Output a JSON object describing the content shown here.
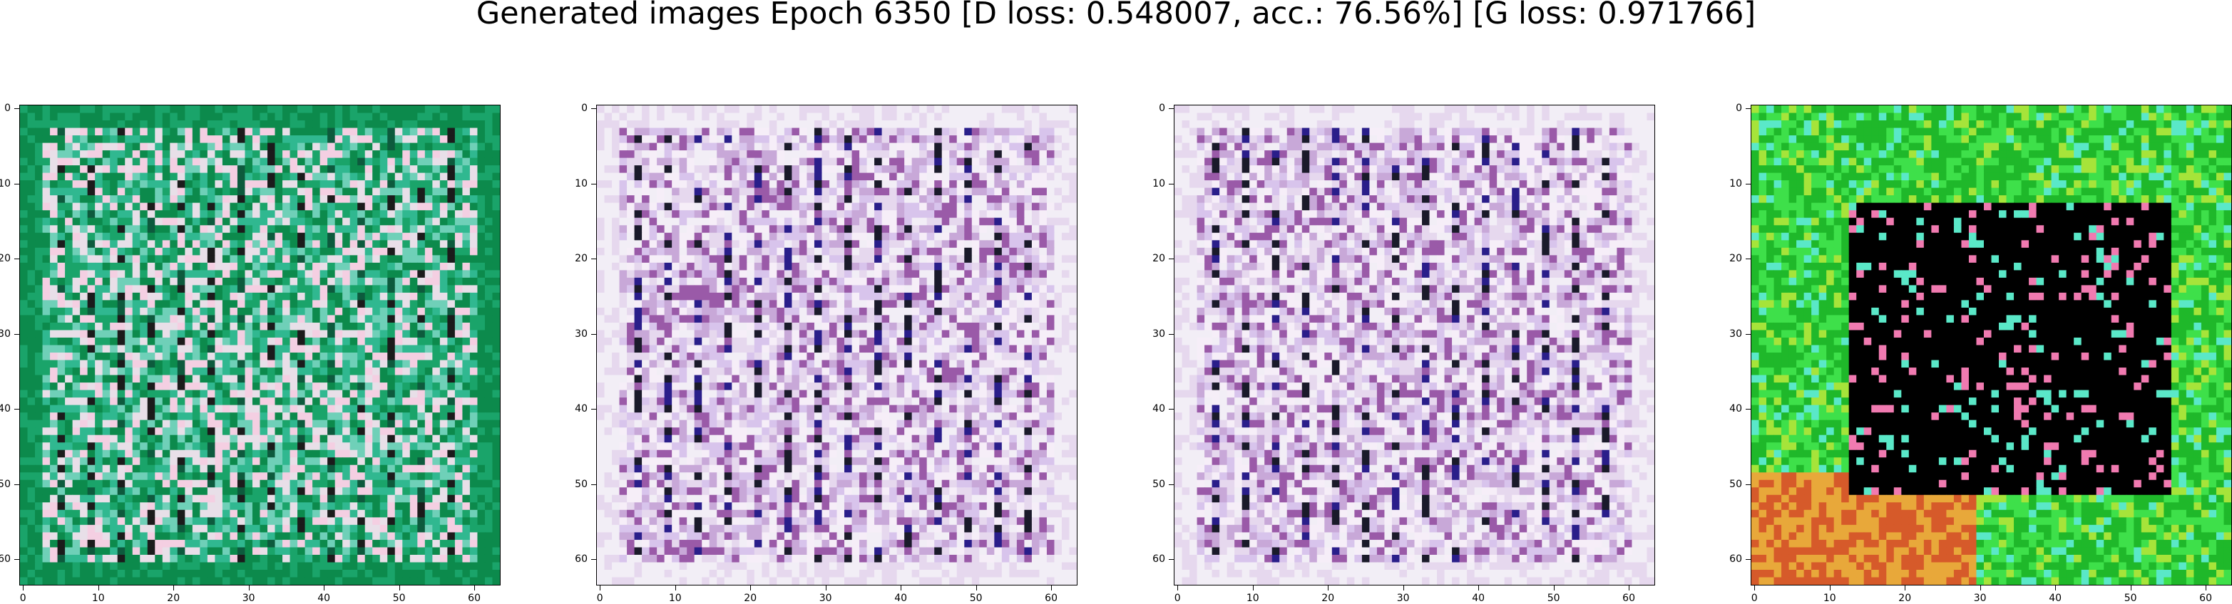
{
  "figure": {
    "title": "Generated images Epoch 6350 [D loss: 0.548007, acc.: 76.56%] [G loss: 0.971766]"
  },
  "panels": [
    {
      "name": "generated-image-1",
      "palette": [
        "#0c8a4c",
        "#1aa46a",
        "#30b890",
        "#6fd0b8",
        "#e8dfe8",
        "#f4cfe2",
        "#1b1b1b",
        "#0d5a3d"
      ],
      "x_ticks": [
        "0",
        "10",
        "20",
        "30",
        "40",
        "50",
        "60"
      ],
      "y_ticks": [
        "0",
        "10",
        "20",
        "30",
        "40",
        "50",
        "60"
      ]
    },
    {
      "name": "generated-image-2",
      "palette": [
        "#f2eef6",
        "#e6d8ee",
        "#d8c4ec",
        "#f6eef8",
        "#c8a8d8",
        "#9a5aa8",
        "#1a1a2a",
        "#2a1e8a"
      ],
      "x_ticks": [
        "0",
        "10",
        "20",
        "30",
        "40",
        "50",
        "60"
      ],
      "y_ticks": [
        "0",
        "10",
        "20",
        "30",
        "40",
        "50",
        "60"
      ]
    },
    {
      "name": "generated-image-3",
      "palette": [
        "#f2eef6",
        "#e6d8ee",
        "#d8c4ec",
        "#f6eef8",
        "#c8a8d8",
        "#9a5aa8",
        "#1a1a2a",
        "#2a1e8a"
      ],
      "x_ticks": [
        "0",
        "10",
        "20",
        "30",
        "40",
        "50",
        "60"
      ],
      "y_ticks": [
        "0",
        "10",
        "20",
        "30",
        "40",
        "50",
        "60"
      ]
    },
    {
      "name": "generated-image-4",
      "palette": [
        "#1fb82a",
        "#3ee04a",
        "#a6e43a",
        "#e8a83a",
        "#d65a2a",
        "#5ae8c8",
        "#000000",
        "#f07ab0"
      ],
      "x_ticks": [
        "0",
        "10",
        "20",
        "30",
        "40",
        "50",
        "60"
      ],
      "y_ticks": [
        "0",
        "10",
        "20",
        "30",
        "40",
        "50",
        "60"
      ]
    }
  ]
}
